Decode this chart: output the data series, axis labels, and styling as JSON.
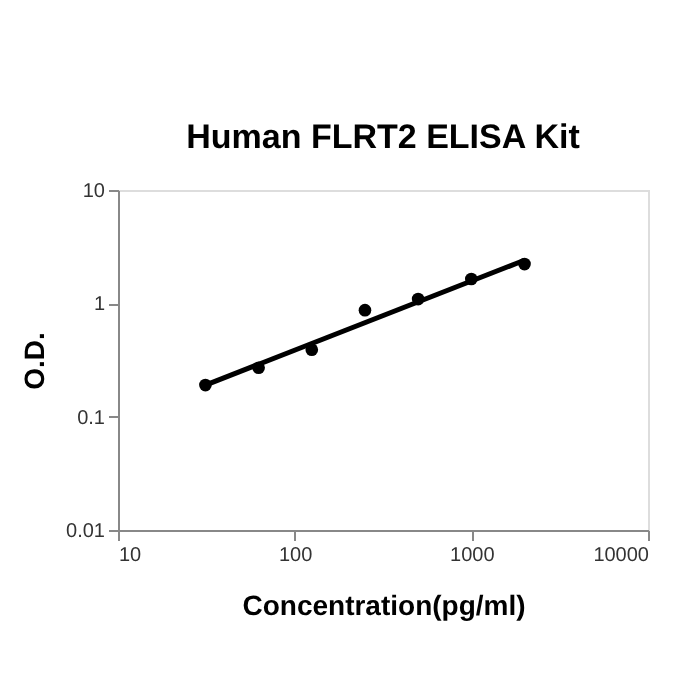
{
  "chart_data": {
    "type": "scatter",
    "title": "Human FLRT2 ELISA Kit",
    "xlabel": "Concentration(pg/ml)",
    "ylabel": "O.D.",
    "log": "xy",
    "grid": false,
    "xlim": [
      10,
      10000
    ],
    "ylim": [
      0.01,
      10
    ],
    "xticks": [
      10,
      100,
      1000,
      10000
    ],
    "yticks": [
      0.01,
      0.1,
      1,
      10
    ],
    "series": [
      {
        "color": "#000000",
        "marker": "circle",
        "x": [
          31.25,
          62.5,
          125,
          250,
          500,
          1000,
          2000
        ],
        "values": [
          0.19,
          0.27,
          0.39,
          0.87,
          1.09,
          1.64,
          2.22
        ]
      },
      {
        "type": "line",
        "color": "#000000",
        "line_style": "solid",
        "x": [
          31.25,
          2000
        ],
        "values": [
          0.19,
          2.4
        ]
      }
    ]
  }
}
